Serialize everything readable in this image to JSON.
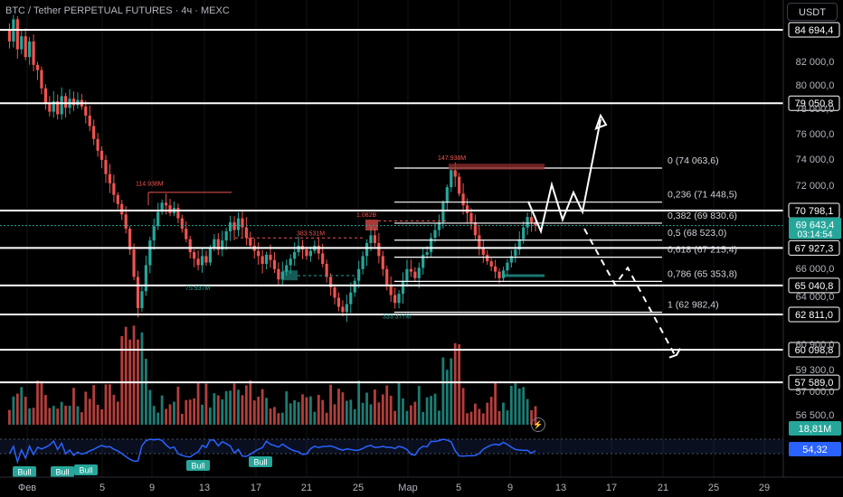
{
  "header": {
    "symbol_title": "BTC / Tether PERPETUAL FUTURES · 4ч · MEXC",
    "currency": "USDT"
  },
  "colors": {
    "background": "#000000",
    "up": "#26a69a",
    "down": "#ef5350",
    "white_line": "#ffffff",
    "rsi": "#2962ff",
    "price_tag": "#26a69a",
    "volume_tag": "#26a69a",
    "rsi_tag": "#2962ff"
  },
  "chart_data": {
    "type": "candlestick",
    "price_axis": {
      "min": 55700,
      "max": 86200,
      "ticks": [
        "82 000,0",
        "80 000,0",
        "78 000,0",
        "76 000,0",
        "74 000,0",
        "72 000,0",
        "66 000,0",
        "64 000,0",
        "60 900,0",
        "59 300,0",
        "57 000,0",
        "56 500,0"
      ]
    },
    "x_axis_labels": [
      "Фев",
      "5",
      "9",
      "13",
      "17",
      "21",
      "25",
      "Мар",
      "5",
      "9",
      "13",
      "17",
      "21",
      "25",
      "29"
    ],
    "horizontal_levels": [
      {
        "price": 84694.4,
        "label": "84 694,4"
      },
      {
        "price": 79050.8,
        "label": "79 050,8"
      },
      {
        "price": 70798.1,
        "label": "70 798,1"
      },
      {
        "price": 67927.3,
        "label": "67 927,3"
      },
      {
        "price": 65040.8,
        "label": "65 040,8"
      },
      {
        "price": 62811.0,
        "label": "62 811,0"
      },
      {
        "price": 60098.8,
        "label": "60 098,8"
      },
      {
        "price": 57589.0,
        "label": "57 589,0"
      }
    ],
    "fibonacci": [
      {
        "ratio": "0",
        "price": 74063.6,
        "label": "0 (74 063,6)"
      },
      {
        "ratio": "0.236",
        "price": 71448.5,
        "label": "0,236 (71 448,5)"
      },
      {
        "ratio": "0.382",
        "price": 69830.6,
        "label": "0,382 (69 830,6)"
      },
      {
        "ratio": "0.5",
        "price": 68523.0,
        "label": "0,5 (68 523,0)"
      },
      {
        "ratio": "0.618",
        "price": 67215.4,
        "label": "0,618 (67 215,4)"
      },
      {
        "ratio": "0.786",
        "price": 65353.8,
        "label": "0,786 (65 353,8)"
      },
      {
        "ratio": "1",
        "price": 62982.4,
        "label": "1 (62 982,4)"
      }
    ],
    "current_price": {
      "value": 69643.4,
      "label": "69 643,4",
      "countdown": "03:14:54"
    },
    "volume": {
      "label": "18,81M"
    },
    "rsi": {
      "label": "54,32"
    },
    "annotations": {
      "volume_labels": [
        "114.938M",
        "383.531M",
        "1.082B",
        "147.938M",
        "75.937M",
        "333.377M"
      ],
      "bull_labels": [
        "Bull",
        "Bull",
        "Bull",
        "Bull",
        "Bull"
      ]
    },
    "price_path": [
      84694,
      83800,
      85500,
      83200,
      84200,
      82600,
      83800,
      82000,
      81600,
      80200,
      79000,
      78400,
      79200,
      78200,
      79600,
      78700,
      79400,
      78900,
      79300,
      78800,
      78100,
      77300,
      76300,
      75400,
      74700,
      73600,
      72900,
      72000,
      71300,
      70500,
      69400,
      67800,
      65700,
      63300,
      64600,
      66600,
      68500,
      69600,
      70700,
      71400,
      71200,
      70600,
      71000,
      70200,
      69400,
      68600,
      67600,
      67100,
      66600,
      67300,
      66800,
      67900,
      68600,
      67800,
      68500,
      69200,
      69900,
      69300,
      70200,
      69500,
      68700,
      68100,
      67700,
      67300,
      66700,
      67400,
      67000,
      66300,
      65500,
      66100,
      66600,
      67100,
      67600,
      68100,
      67800,
      67300,
      67700,
      68100,
      67500,
      66700,
      65700,
      64900,
      64100,
      63400,
      63000,
      63600,
      64500,
      65400,
      66300,
      67300,
      68300,
      68900,
      68300,
      67300,
      66300,
      65100,
      64300,
      63700,
      64400,
      65400,
      66300,
      66100,
      65600,
      66400,
      67400,
      67600,
      68700,
      69300,
      69900,
      71400,
      72600,
      73900,
      73400,
      72100,
      71200,
      70600,
      69900,
      68900,
      67900,
      67400,
      66900,
      66500,
      66100,
      65600,
      66200,
      66800,
      67300,
      67800,
      68600,
      69500,
      70300,
      69900,
      69643
    ]
  }
}
